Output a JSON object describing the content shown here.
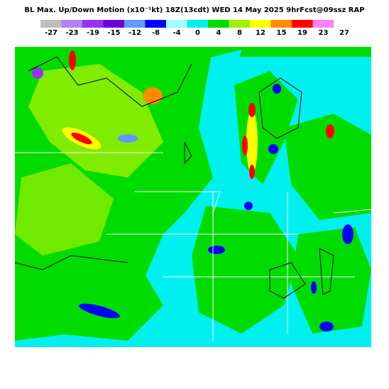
{
  "header": {
    "title": "BL Max. Up/Down Motion (x10⁻¹kt) 18Z(13cdt) WED 14 May 2025 9hrFcst@09ssz RAP"
  },
  "legend": {
    "labels": [
      -27,
      -23,
      -19,
      -15,
      -12,
      -8,
      -4,
      0,
      4,
      8,
      12,
      15,
      19,
      23,
      27
    ],
    "colors": [
      "#bebebe",
      "#b482f0",
      "#9632f0",
      "#6e00d2",
      "#6496ff",
      "#0000ff",
      "#a0ffff",
      "#00f0f0",
      "#00dc00",
      "#a0f000",
      "#ffff00",
      "#ff8c00",
      "#ff0000",
      "#ff80ff"
    ]
  }
}
